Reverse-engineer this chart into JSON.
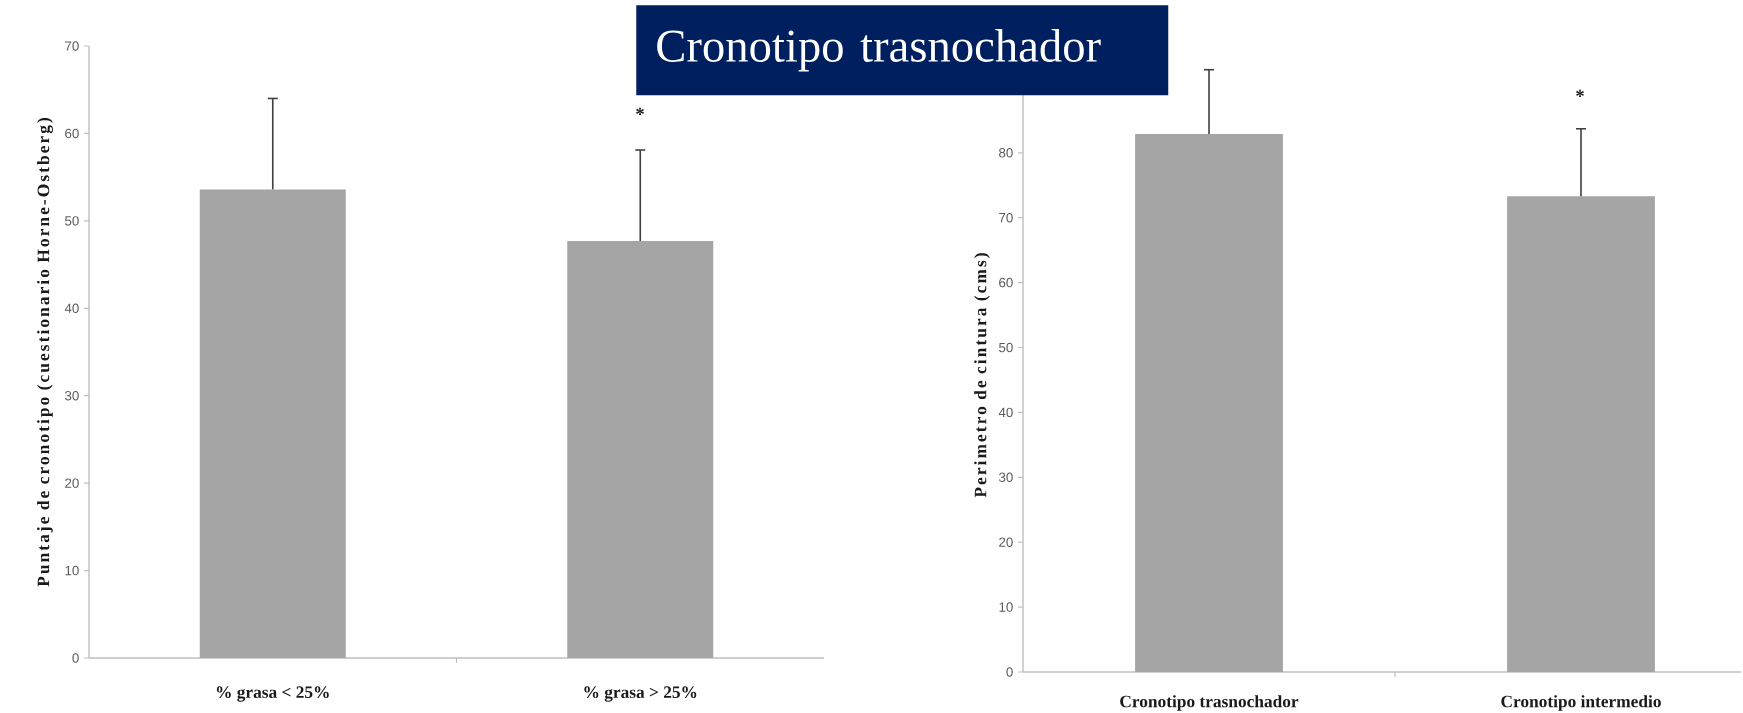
{
  "chart_data": [
    {
      "type": "bar",
      "title": "Cronotipo trasnochador",
      "ylabel": "Puntaje de cronotipo (cuestionario Horne-Ostberg)",
      "categories": [
        "% grasa < 25%",
        "% grasa > 25%"
      ],
      "values": [
        53.6,
        47.7
      ],
      "errors": [
        [
          53.6,
          64.0
        ],
        [
          47.7,
          58.1
        ]
      ],
      "color": "#a5a5a5",
      "ylim": [
        0,
        70
      ],
      "yticks": [
        0,
        10,
        20,
        30,
        40,
        50,
        60,
        70
      ],
      "annotations": [
        "*"
      ]
    },
    {
      "type": "bar",
      "ylabel": "Perimetro de cintura (cms)",
      "categories": [
        "Cronotipo trasnochador",
        "Cronotipo intermedio"
      ],
      "values": [
        82.9,
        73.3
      ],
      "errors": [
        [
          82.9,
          92.8
        ],
        [
          73.3,
          83.7
        ]
      ],
      "color": "#a5a5a5",
      "ylim": [
        0,
        100
      ],
      "yticks": [
        0,
        10,
        20,
        30,
        40,
        50,
        60,
        70,
        80
      ],
      "annotations": [
        "*"
      ]
    }
  ]
}
